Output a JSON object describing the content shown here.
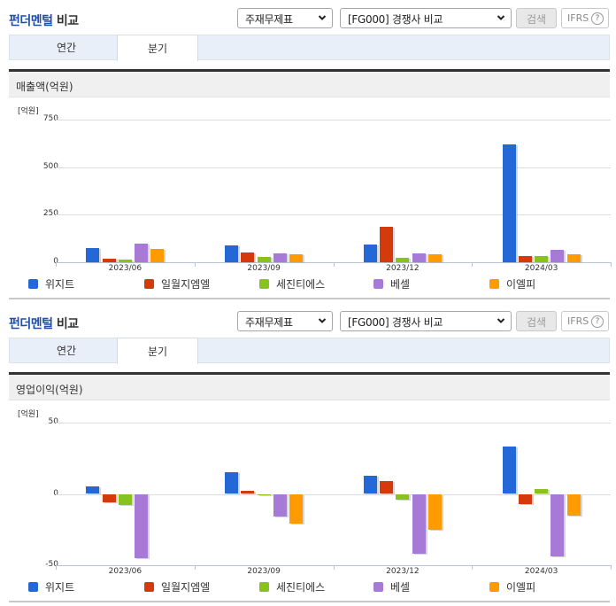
{
  "colors": {
    "series": [
      "#2468d8",
      "#d43a0c",
      "#88c21c",
      "#a77ad8",
      "#ff9a00"
    ],
    "title_blue": "#1f4fa8"
  },
  "sections": [
    {
      "title_part1": "펀더멘털",
      "title_part2": "비교",
      "select_statement": "주재무제표",
      "select_compare": "[FG000] 경쟁사 비교",
      "search_button": "검색",
      "ifrs_button": "IFRS",
      "help_icon": "?",
      "tabs": [
        {
          "label": "연간",
          "active": false
        },
        {
          "label": "분기",
          "active": true
        }
      ],
      "chart_header": "매출액(억원)"
    },
    {
      "title_part1": "펀더멘털",
      "title_part2": "비교",
      "select_statement": "주재무제표",
      "select_compare": "[FG000] 경쟁사 비교",
      "search_button": "검색",
      "ifrs_button": "IFRS",
      "help_icon": "?",
      "tabs": [
        {
          "label": "연간",
          "active": false
        },
        {
          "label": "분기",
          "active": true
        }
      ],
      "chart_header": "영업이익(억원)"
    }
  ],
  "chart_data": [
    {
      "type": "bar",
      "title": "매출액(억원)",
      "unit_label": "[억원]",
      "xlabel": "",
      "ylabel": "억원",
      "ylim": [
        0,
        750
      ],
      "yticks": [
        750,
        500,
        250,
        0
      ],
      "grid": true,
      "legend_position": "bottom",
      "categories": [
        "2023/06",
        "2023/09",
        "2023/12",
        "2024/03"
      ],
      "series": [
        {
          "name": "위지트",
          "values": [
            75,
            90,
            95,
            620
          ]
        },
        {
          "name": "일월지엠엘",
          "values": [
            20,
            53,
            185,
            33
          ]
        },
        {
          "name": "세진티에스",
          "values": [
            15,
            30,
            25,
            33
          ]
        },
        {
          "name": "베셀",
          "values": [
            100,
            48,
            45,
            67
          ]
        },
        {
          "name": "이엘피",
          "values": [
            70,
            43,
            43,
            43
          ]
        }
      ]
    },
    {
      "type": "bar",
      "title": "영업이익(억원)",
      "unit_label": "[억원]",
      "xlabel": "",
      "ylabel": "억원",
      "ylim": [
        -50,
        50
      ],
      "yticks": [
        50,
        0,
        -50
      ],
      "grid": true,
      "legend_position": "bottom",
      "categories": [
        "2023/06",
        "2023/09",
        "2023/12",
        "2024/03"
      ],
      "series": [
        {
          "name": "위지트",
          "values": [
            5,
            15,
            13,
            33
          ]
        },
        {
          "name": "일월지엠엘",
          "values": [
            -6,
            2,
            9,
            -7
          ]
        },
        {
          "name": "세진티에스",
          "values": [
            -8,
            -1,
            -4,
            3.5
          ]
        },
        {
          "name": "베셀",
          "values": [
            -45,
            -16,
            -42,
            -44
          ]
        },
        {
          "name": "이엘피",
          "values": [
            null,
            -21,
            -25,
            -15
          ]
        }
      ]
    }
  ]
}
